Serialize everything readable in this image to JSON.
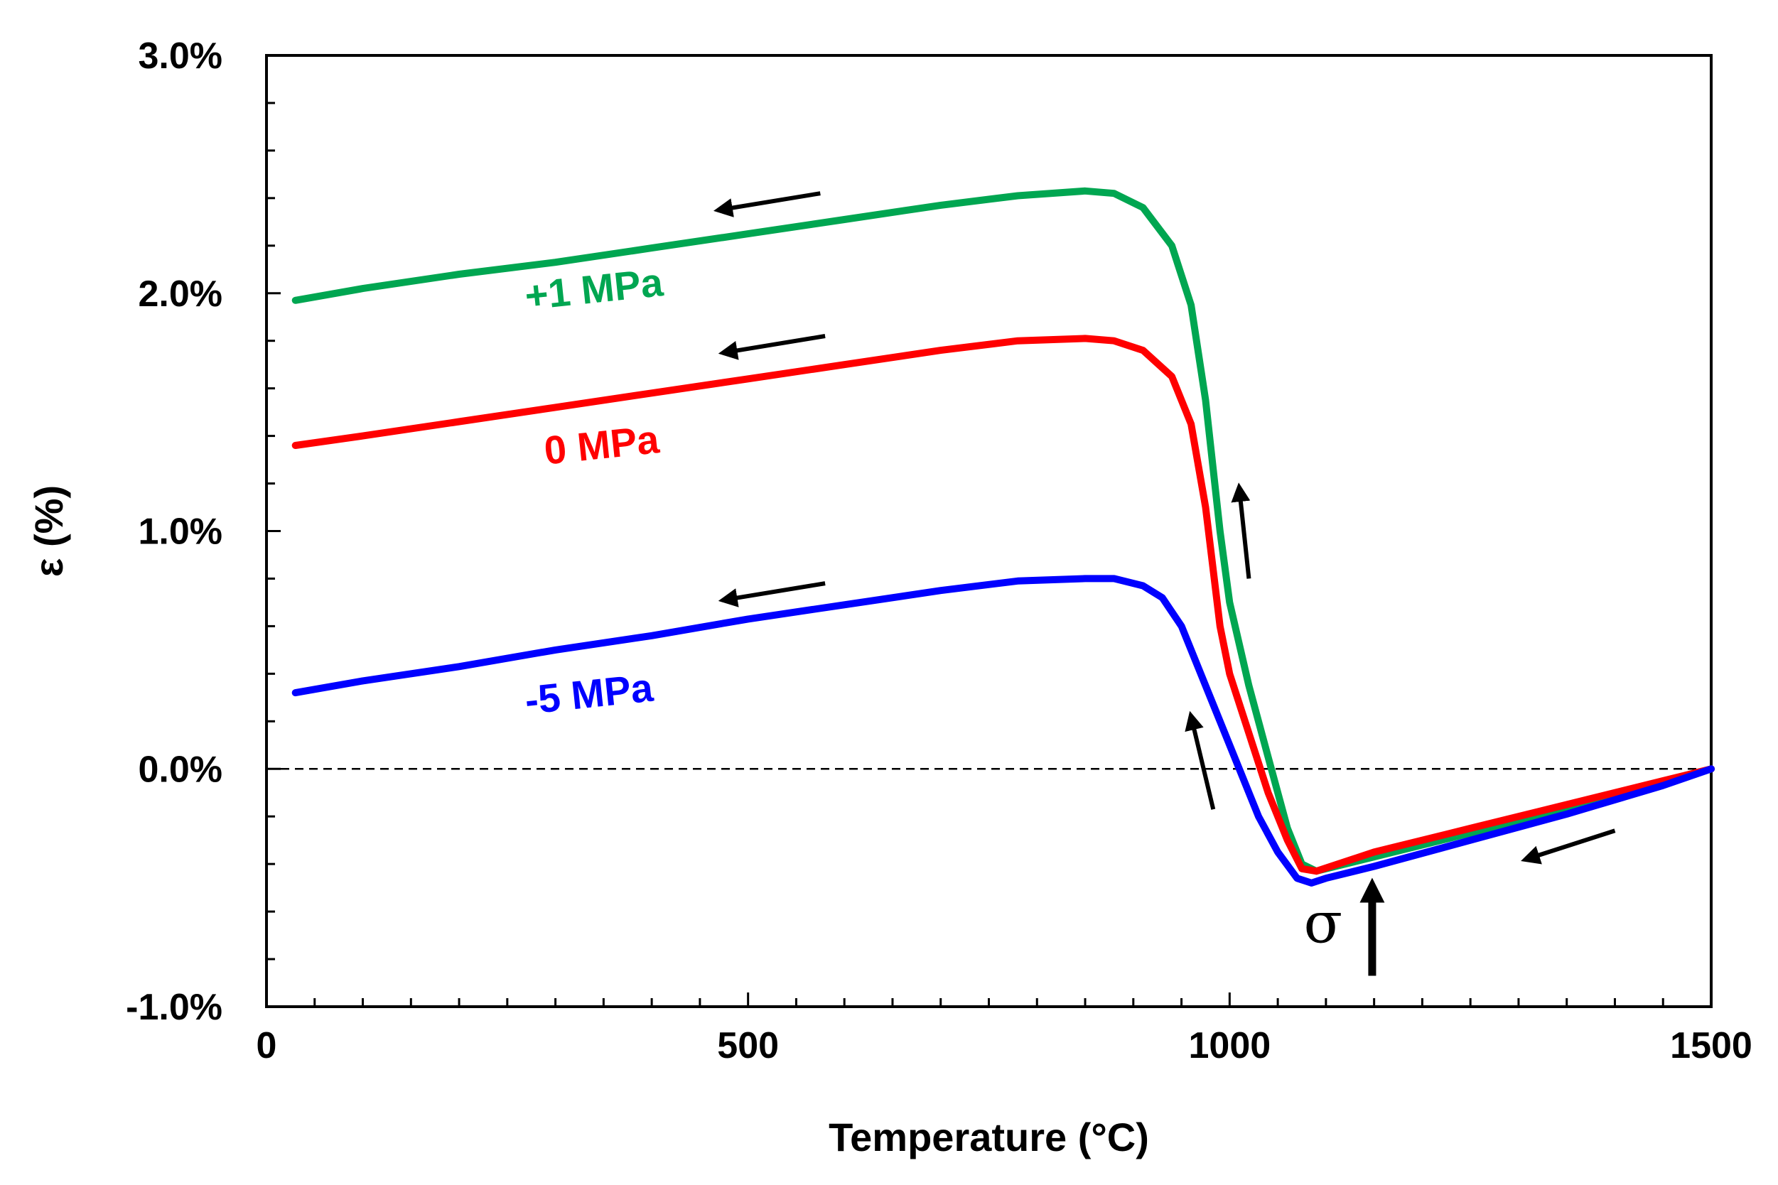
{
  "chart_data": {
    "type": "line",
    "title": "",
    "xlabel": "Temperature (°C)",
    "ylabel": "ε (%)",
    "xlim": [
      0,
      1500
    ],
    "ylim": [
      -1.0,
      3.0
    ],
    "x_ticks": [
      0,
      500,
      1000,
      1500
    ],
    "x_tick_labels": [
      "0",
      "500",
      "1000",
      "1500"
    ],
    "y_ticks": [
      -1.0,
      0.0,
      1.0,
      2.0,
      3.0
    ],
    "y_tick_labels": [
      "-1.0%",
      "0.0%",
      "1.0%",
      "2.0%",
      "3.0%"
    ],
    "x_minor_step": 50,
    "y_minor_step": 0.2,
    "grid": false,
    "reference_line": {
      "y": 0.0,
      "style": "dashed"
    },
    "series": [
      {
        "name": "+1 MPa",
        "color": "#00a651",
        "x": [
          30,
          100,
          200,
          300,
          400,
          500,
          600,
          700,
          780,
          850,
          880,
          910,
          940,
          960,
          975,
          990,
          1000,
          1020,
          1040,
          1060,
          1075,
          1090,
          1150,
          1250,
          1350,
          1450,
          1500
        ],
        "y": [
          1.97,
          2.02,
          2.08,
          2.13,
          2.19,
          2.25,
          2.31,
          2.37,
          2.41,
          2.43,
          2.42,
          2.36,
          2.2,
          1.95,
          1.55,
          1.0,
          0.7,
          0.35,
          0.05,
          -0.25,
          -0.4,
          -0.43,
          -0.37,
          -0.27,
          -0.17,
          -0.06,
          0.0
        ]
      },
      {
        "name": "0 MPa",
        "color": "#ff0000",
        "x": [
          30,
          100,
          200,
          300,
          400,
          500,
          600,
          700,
          780,
          850,
          880,
          910,
          940,
          960,
          975,
          990,
          1000,
          1020,
          1040,
          1060,
          1075,
          1090,
          1150,
          1250,
          1350,
          1450,
          1500
        ],
        "y": [
          1.36,
          1.4,
          1.46,
          1.52,
          1.58,
          1.64,
          1.7,
          1.76,
          1.8,
          1.81,
          1.8,
          1.76,
          1.65,
          1.45,
          1.1,
          0.6,
          0.4,
          0.15,
          -0.1,
          -0.3,
          -0.42,
          -0.43,
          -0.35,
          -0.25,
          -0.15,
          -0.05,
          0.0
        ]
      },
      {
        "name": "-5 MPa",
        "color": "#0000ff",
        "x": [
          30,
          100,
          200,
          300,
          400,
          500,
          600,
          700,
          780,
          850,
          880,
          910,
          930,
          950,
          970,
          990,
          1010,
          1030,
          1050,
          1070,
          1085,
          1100,
          1150,
          1250,
          1350,
          1450,
          1500
        ],
        "y": [
          0.32,
          0.37,
          0.43,
          0.5,
          0.56,
          0.63,
          0.69,
          0.75,
          0.79,
          0.8,
          0.8,
          0.77,
          0.72,
          0.6,
          0.4,
          0.2,
          0.0,
          -0.2,
          -0.35,
          -0.46,
          -0.48,
          -0.46,
          -0.41,
          -0.3,
          -0.19,
          -0.07,
          0.0
        ]
      }
    ],
    "annotations": [
      {
        "type": "label",
        "text": "+1 MPa",
        "x": 270,
        "y": 1.93,
        "color": "#00a651",
        "rotate": -6
      },
      {
        "type": "label",
        "text": "0 MPa",
        "x": 290,
        "y": 1.28,
        "color": "#ff0000",
        "rotate": -6
      },
      {
        "type": "label",
        "text": "-5 MPa",
        "x": 270,
        "y": 0.23,
        "color": "#0000ff",
        "rotate": -6
      },
      {
        "type": "arrow",
        "from": [
          575,
          2.42
        ],
        "to": [
          470,
          2.35
        ]
      },
      {
        "type": "arrow",
        "from": [
          580,
          1.82
        ],
        "to": [
          475,
          1.75
        ]
      },
      {
        "type": "arrow",
        "from": [
          580,
          0.78
        ],
        "to": [
          475,
          0.71
        ]
      },
      {
        "type": "arrow",
        "from": [
          1020,
          0.8
        ],
        "to": [
          1010,
          1.18
        ]
      },
      {
        "type": "arrow",
        "from": [
          983,
          -0.17
        ],
        "to": [
          960,
          0.22
        ]
      },
      {
        "type": "arrow",
        "from": [
          1400,
          -0.26
        ],
        "to": [
          1308,
          -0.38
        ]
      },
      {
        "type": "sigma_arrow",
        "text": "σ",
        "from": [
          1148,
          -0.87
        ],
        "to": [
          1148,
          -0.5
        ],
        "text_at": [
          1097,
          -0.73
        ]
      }
    ]
  }
}
